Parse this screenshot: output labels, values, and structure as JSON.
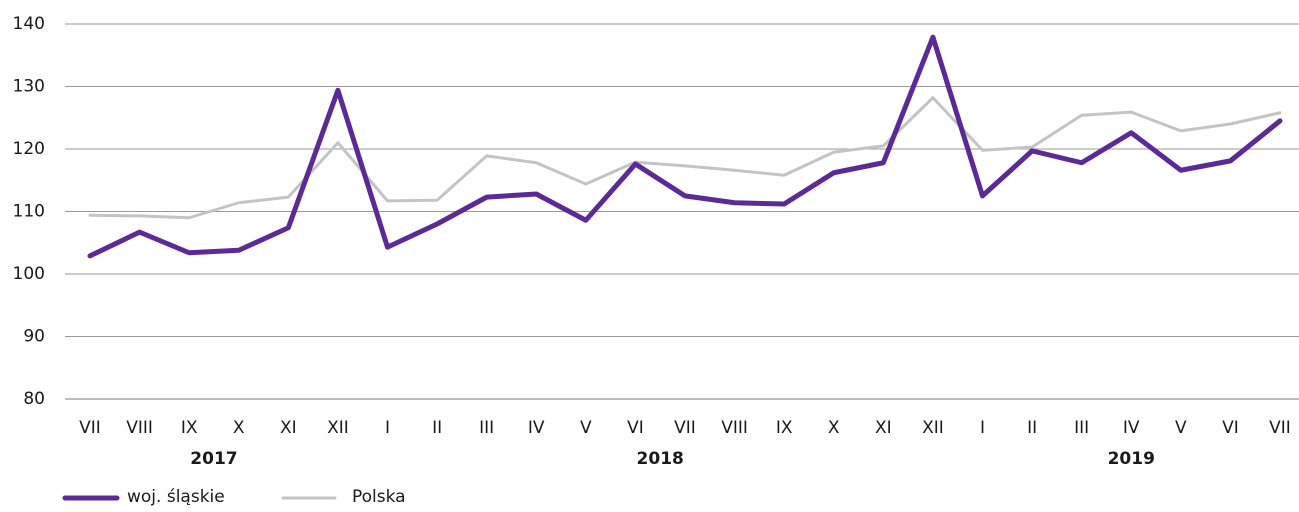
{
  "chart_data": {
    "type": "line",
    "categories": [
      "VII",
      "VIII",
      "IX",
      "X",
      "XI",
      "XII",
      "I",
      "II",
      "III",
      "IV",
      "V",
      "VI",
      "VII",
      "VIII",
      "IX",
      "X",
      "XI",
      "XII",
      "I",
      "II",
      "III",
      "IV",
      "V",
      "VI",
      "VII"
    ],
    "x_groups": [
      {
        "label": "2017",
        "count": 6
      },
      {
        "label": "2018",
        "count": 12
      },
      {
        "label": "2019",
        "count": 7
      }
    ],
    "series": [
      {
        "name": "woj. śląskie",
        "color": "#5b2a96",
        "values": [
          102.9,
          106.7,
          103.4,
          103.8,
          107.4,
          129.4,
          104.3,
          108,
          112.3,
          112.8,
          108.6,
          117.6,
          112.5,
          111.4,
          111.2,
          116.2,
          117.8,
          137.9,
          112.5,
          119.7,
          117.8,
          122.6,
          116.6,
          118.1,
          124.5
        ]
      },
      {
        "name": "Polska",
        "color": "#c4c4c4",
        "values": [
          109.4,
          109.3,
          109,
          111.4,
          112.3,
          121,
          111.7,
          111.8,
          118.9,
          117.8,
          114.4,
          117.9,
          117.3,
          116.6,
          115.8,
          119.5,
          120.5,
          128.2,
          119.8,
          120.3,
          125.4,
          125.9,
          122.9,
          124,
          125.8
        ]
      }
    ],
    "ylim": [
      80,
      140
    ],
    "yticks": [
      80,
      90,
      100,
      110,
      120,
      130,
      140
    ],
    "grid": true,
    "legend": "bottom-left"
  }
}
